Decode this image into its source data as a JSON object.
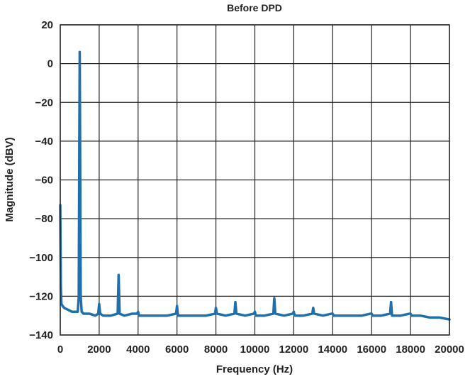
{
  "chart_data": {
    "type": "line",
    "title": "Before DPD",
    "xlabel": "Frequency (Hz)",
    "ylabel": "Magnitude (dBV)",
    "xlim": [
      0,
      20000
    ],
    "ylim": [
      -140,
      20
    ],
    "xticks": [
      0,
      2000,
      4000,
      6000,
      8000,
      10000,
      12000,
      14000,
      16000,
      18000,
      20000
    ],
    "yticks": [
      20,
      0,
      -20,
      -40,
      -60,
      -80,
      -100,
      -120,
      -140
    ],
    "grid": true,
    "line_color": "#1f6fad",
    "series": [
      {
        "x": [
          0,
          30,
          60,
          120,
          200,
          400,
          600,
          800,
          900,
          950,
          980,
          1000,
          1020,
          1050,
          1100,
          1200,
          1500,
          1800,
          1950,
          2000,
          2050,
          2200,
          2600,
          2950,
          3000,
          3050,
          3300,
          3700,
          3950,
          4000,
          4050,
          4500,
          5000,
          5500,
          5950,
          6000,
          6050,
          6500,
          7000,
          7500,
          7950,
          8000,
          8050,
          8500,
          8950,
          9000,
          9050,
          9500,
          9950,
          10000,
          10050,
          10500,
          10950,
          11000,
          11050,
          11500,
          11950,
          12000,
          12050,
          12500,
          12950,
          13000,
          13050,
          13500,
          13950,
          14000,
          14050,
          14500,
          15000,
          15500,
          15950,
          16000,
          16050,
          16500,
          16950,
          17000,
          17050,
          17500,
          17950,
          18000,
          18050,
          18500,
          19000,
          19500,
          20000
        ],
        "y": [
          -73,
          -115,
          -124,
          -125,
          -126,
          -127,
          -128,
          -128,
          -128,
          -120,
          -40,
          6,
          -40,
          -120,
          -128,
          -129,
          -129,
          -130,
          -129,
          -124,
          -129,
          -130,
          -130,
          -129,
          -109,
          -129,
          -130,
          -129,
          -129,
          -128,
          -130,
          -130,
          -130,
          -130,
          -129,
          -125,
          -130,
          -130,
          -130,
          -130,
          -129,
          -126,
          -129,
          -130,
          -129,
          -123,
          -129,
          -130,
          -129,
          -128,
          -130,
          -130,
          -129,
          -121,
          -129,
          -130,
          -129,
          -128,
          -130,
          -130,
          -129,
          -126,
          -129,
          -130,
          -129,
          -129,
          -130,
          -130,
          -130,
          -130,
          -129,
          -129,
          -130,
          -130,
          -129,
          -123,
          -130,
          -130,
          -129,
          -129,
          -130,
          -130,
          -131,
          -131,
          -132
        ]
      }
    ]
  }
}
